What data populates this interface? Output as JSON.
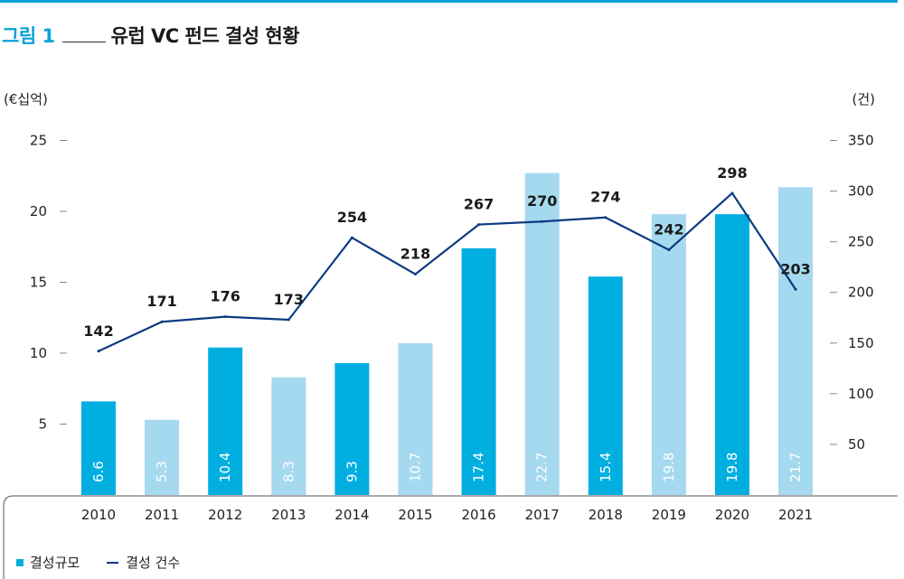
{
  "header": {
    "figure_label": "그림 1",
    "title": "유럽 VC 펀드 결성 현황"
  },
  "chart_data": {
    "type": "bar",
    "categories": [
      "2010",
      "2011",
      "2012",
      "2013",
      "2014",
      "2015",
      "2016",
      "2017",
      "2018",
      "2019",
      "2020",
      "2021"
    ],
    "series": [
      {
        "name": "결성규모",
        "type": "bar",
        "axis": "left",
        "values": [
          6.6,
          5.3,
          10.4,
          8.3,
          9.3,
          10.7,
          17.4,
          22.7,
          15.4,
          19.8,
          19.8,
          21.7
        ],
        "colors": [
          "#00aee0",
          "#a5d9ef",
          "#00aee0",
          "#a5d9ef",
          "#00aee0",
          "#a5d9ef",
          "#00aee0",
          "#a5d9ef",
          "#00aee0",
          "#a5d9ef",
          "#00aee0",
          "#a5d9ef"
        ]
      },
      {
        "name": "결성 건수",
        "type": "line",
        "axis": "right",
        "values": [
          142,
          171,
          176,
          173,
          254,
          218,
          267,
          270,
          274,
          242,
          298,
          203
        ],
        "color": "#0b3a82"
      }
    ],
    "y_left": {
      "label": "(€십억)",
      "ticks": [
        5,
        10,
        15,
        20,
        25
      ],
      "range": [
        0,
        25
      ]
    },
    "y_right": {
      "label": "(건)",
      "ticks": [
        50,
        100,
        150,
        200,
        250,
        300,
        350
      ],
      "range": [
        0,
        350
      ]
    },
    "legend_position": "bottom-left"
  }
}
